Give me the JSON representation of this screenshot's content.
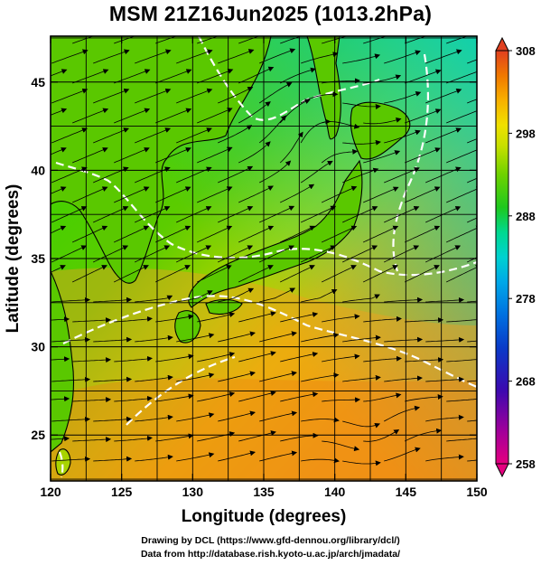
{
  "title": "MSM 21Z16Jun2025 (1013.2hPa)",
  "credits": {
    "line1": "Drawing by DCL (https://www.gfd-dennou.org/library/dcl/)",
    "line2": "Data from http://database.rish.kyoto-u.ac.jp/arch/jmadata/"
  },
  "map": {
    "xlabel": "Longitude (degrees)",
    "ylabel": "Latitude  (degrees)",
    "x_range": [
      120,
      150
    ],
    "y_range": [
      22.4,
      47.6
    ],
    "x_ticks": [
      120,
      125,
      130,
      135,
      140,
      145,
      150
    ],
    "y_ticks": [
      25,
      30,
      35,
      40,
      45
    ],
    "grid": true
  },
  "colorbar": {
    "range": [
      258,
      308
    ],
    "ticks": [
      308,
      298,
      288,
      278,
      268,
      258
    ],
    "colors": [
      "#e5007f",
      "#a0009a",
      "#3a0ab0",
      "#0a3ac8",
      "#0070e0",
      "#00a8e8",
      "#00d2d0",
      "#00d890",
      "#1ec81e",
      "#6ed200",
      "#c8e000",
      "#f0e000",
      "#f8b000",
      "#f07800",
      "#e04020"
    ]
  }
}
